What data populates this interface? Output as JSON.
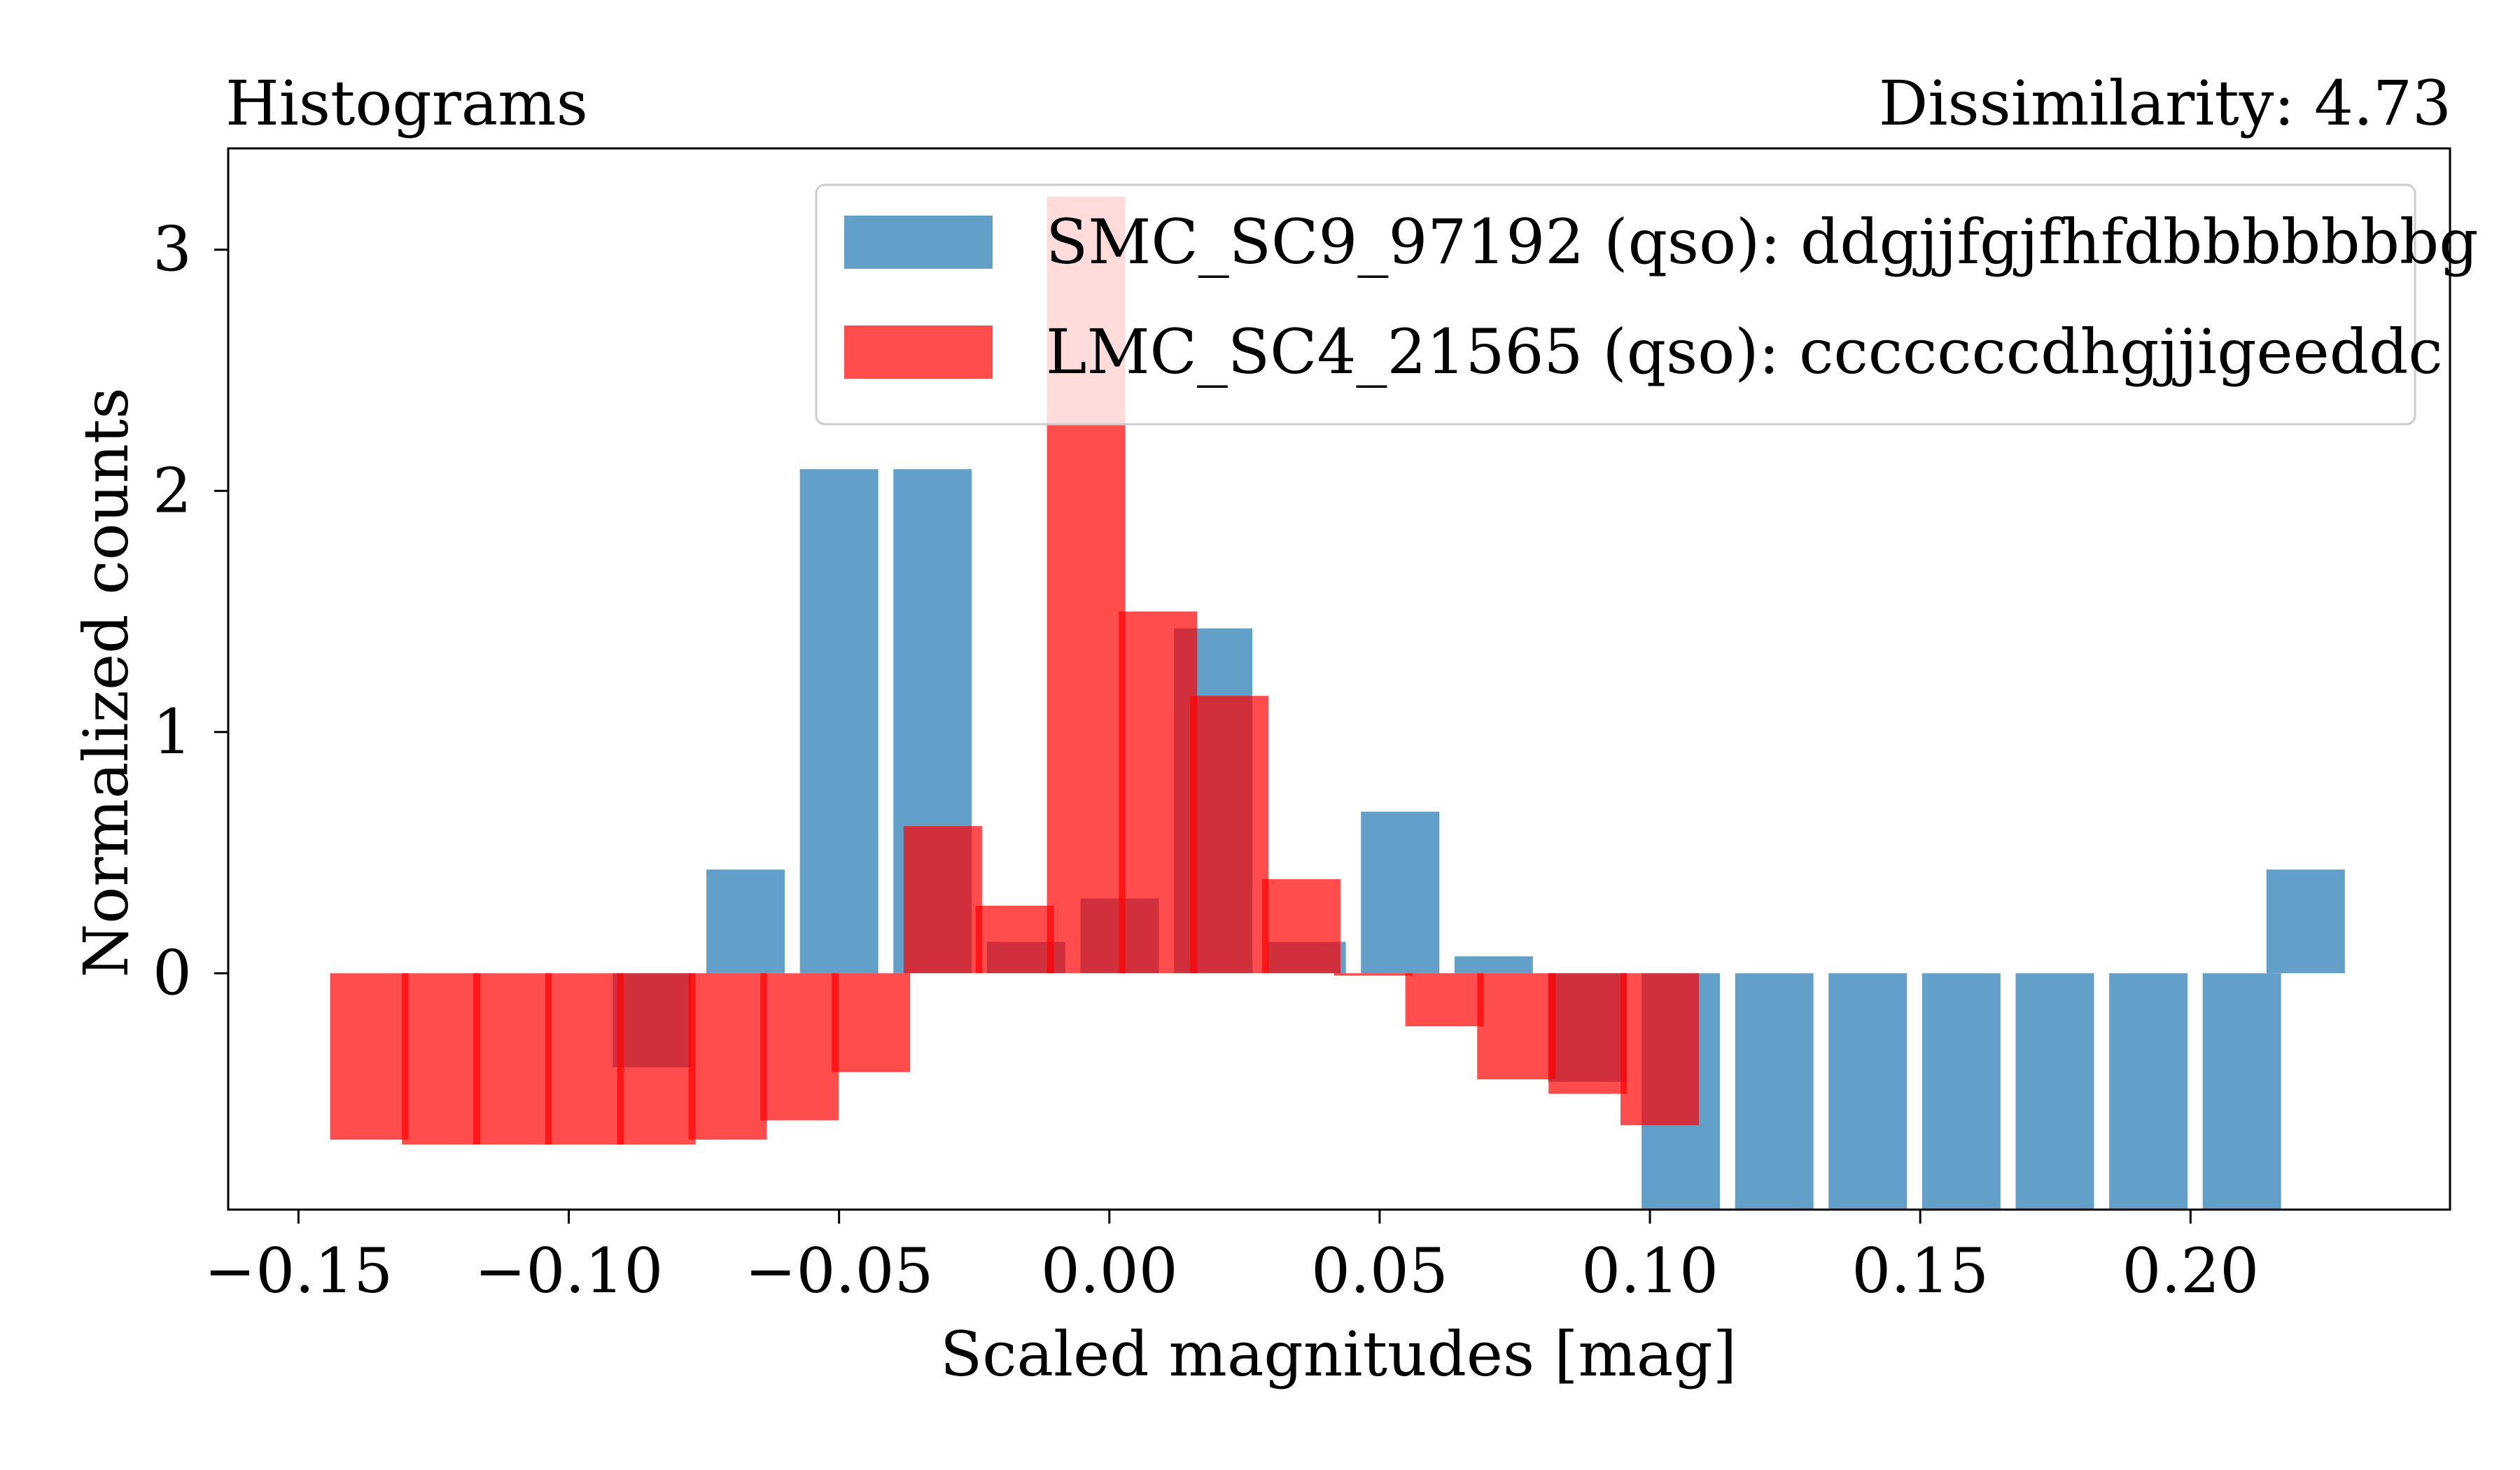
{
  "chart_data": {
    "type": "bar",
    "title": "Histograms",
    "subtitle": "Dissimilarity: 4.73",
    "xlabel": "Scaled magnitudes [mag]",
    "ylabel": "Normalized counts",
    "xlim": [
      -0.163,
      0.248
    ],
    "ylim": [
      -0.98,
      3.42
    ],
    "xticks": [
      -0.15,
      -0.1,
      -0.05,
      0.0,
      0.05,
      0.1,
      0.15,
      0.2
    ],
    "xtick_labels": [
      "−0.15",
      "−0.10",
      "−0.05",
      "0.00",
      "0.05",
      "0.10",
      "0.15",
      "0.20"
    ],
    "yticks": [
      0,
      1,
      2,
      3
    ],
    "ytick_labels": [
      "0",
      "1",
      "2",
      "3"
    ],
    "grid": false,
    "legend_position": "top-right",
    "series": [
      {
        "name": "SMC_SC9_97192 (qso): ddgjjfgjfhfdbbbbbbbg",
        "color": "#1f77b4",
        "opacity": 0.7,
        "bar_width": 0.0145,
        "x": [
          -0.1365,
          -0.1192,
          -0.1019,
          -0.0846,
          -0.0673,
          -0.05,
          -0.0327,
          -0.0154,
          0.0019,
          0.0192,
          0.0365,
          0.0538,
          0.0711,
          0.0884,
          0.1057,
          0.123,
          0.1403,
          0.1576,
          0.1749,
          0.1922,
          0.2095,
          0.2213
        ],
        "values": [
          0,
          0,
          0,
          -0.39,
          0.43,
          2.09,
          2.09,
          0.13,
          0.31,
          1.43,
          0.13,
          0.67,
          0.07,
          -0.45,
          -0.98,
          -0.98,
          -0.98,
          -0.98,
          -0.98,
          -0.98,
          -0.98,
          0.43
        ]
      },
      {
        "name": "LMC_SC4_21565 (qso): cccccccdhgjjigeeddc",
        "color": "#ff0000",
        "opacity": 0.7,
        "bar_width": 0.0145,
        "x": [
          -0.1369,
          -0.1236,
          -0.1104,
          -0.0971,
          -0.0838,
          -0.0706,
          -0.0573,
          -0.0441,
          -0.0308,
          -0.0175,
          -0.0043,
          0.009,
          0.0222,
          0.0355,
          0.0488,
          0.062,
          0.0753,
          0.0885,
          0.1018
        ],
        "values": [
          -0.69,
          -0.71,
          -0.71,
          -0.71,
          -0.71,
          -0.69,
          -0.61,
          -0.41,
          0.61,
          0.28,
          3.22,
          1.5,
          1.15,
          0.39,
          -0.01,
          -0.22,
          -0.44,
          -0.5,
          -0.63
        ]
      }
    ]
  }
}
